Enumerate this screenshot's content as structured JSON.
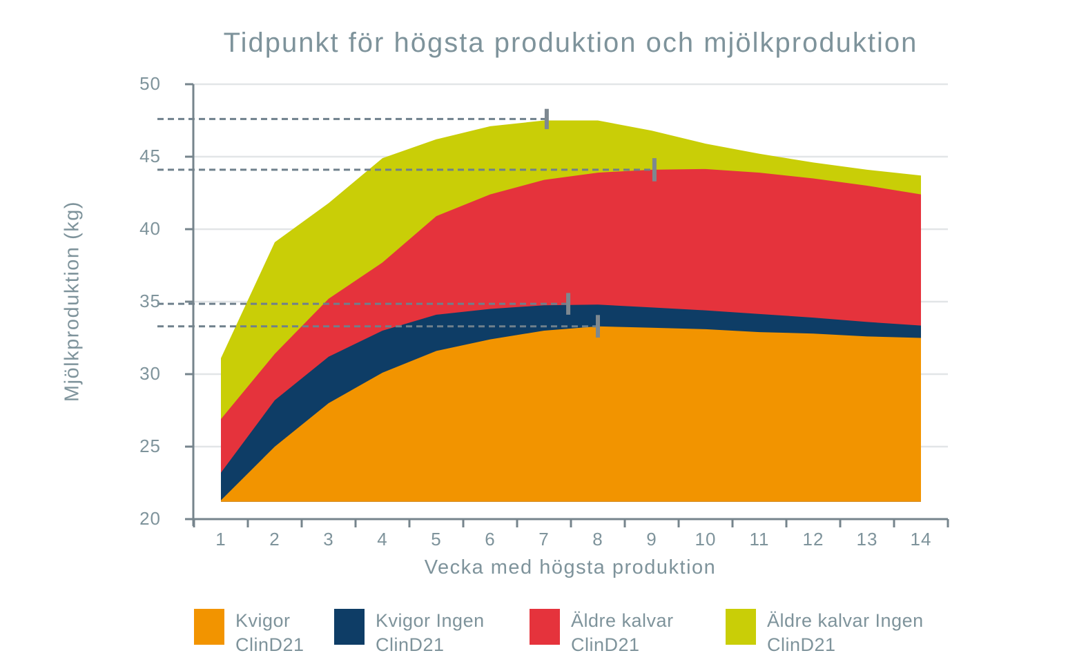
{
  "title": "Tidpunkt för högsta produktion och mjölkproduktion",
  "colors": {
    "orange": "#F29400",
    "navy": "#0E3D66",
    "red": "#E5333C",
    "yellow_green": "#C9CE07",
    "text_gray": "#7E939B",
    "axis": "#76848C",
    "gridline": "#E2E5E7",
    "dashed_line": "#6F808C",
    "marker": "#7D8890"
  },
  "chart_data": {
    "type": "area",
    "title": "Tidpunkt för högsta produktion och mjölkproduktion",
    "xlabel": "Vecka med högsta produktion",
    "ylabel": "Mjölkproduktion (kg)",
    "x": [
      1,
      2,
      3,
      4,
      5,
      6,
      7,
      8,
      9,
      10,
      11,
      12,
      13,
      14
    ],
    "ylim": [
      20,
      50
    ],
    "ytick_step": 5,
    "grid": true,
    "fill_baseline": 21.2,
    "legend_position": "bottom",
    "note": "Overlapping (non-stacked) area series drawn back-to-front: last series in legend order is drawn first. Dashed lines mark peak production level, vertical gray bars mark week of peak production with error range.",
    "series": [
      {
        "id": "kvigor-clind21",
        "name": "Kvigor ClinD21",
        "legend_lines": [
          "Kvigor",
          "ClinD21"
        ],
        "color": "#F29400",
        "values": [
          21.3,
          25.0,
          28.0,
          30.1,
          31.6,
          32.4,
          33.0,
          33.3,
          33.2,
          33.1,
          32.9,
          32.8,
          32.6,
          32.5
        ],
        "peak": {
          "week": 8.0,
          "value": 33.3,
          "err": 0.78
        }
      },
      {
        "id": "kvigor-ingen-clind21",
        "name": "Kvigor Ingen ClinD21",
        "legend_lines": [
          "Kvigor Ingen",
          "ClinD21"
        ],
        "color": "#0E3D66",
        "values": [
          23.2,
          28.2,
          31.2,
          33.0,
          34.1,
          34.5,
          34.75,
          34.8,
          34.6,
          34.4,
          34.15,
          33.9,
          33.6,
          33.35
        ],
        "peak": {
          "week": 7.45,
          "value": 34.85,
          "err": 0.75
        }
      },
      {
        "id": "aldre-kalvar-clind21",
        "name": "Äldre kalvar ClinD21",
        "legend_lines": [
          "Äldre kalvar",
          "ClinD21"
        ],
        "color": "#E5333C",
        "values": [
          26.9,
          31.4,
          35.2,
          37.7,
          40.9,
          42.4,
          43.4,
          43.9,
          44.1,
          44.15,
          43.9,
          43.5,
          43.0,
          42.4
        ],
        "peak": {
          "week": 9.05,
          "value": 44.1,
          "err": 0.8
        }
      },
      {
        "id": "aldre-kalvar-ingen-clind21",
        "name": "Äldre kalvar Ingen ClinD21",
        "legend_lines": [
          "Äldre kalvar Ingen",
          "ClinD21"
        ],
        "color": "#C9CE07",
        "values": [
          31.1,
          39.1,
          41.8,
          44.9,
          46.2,
          47.1,
          47.5,
          47.5,
          46.8,
          45.9,
          45.2,
          44.6,
          44.1,
          43.7
        ],
        "peak": {
          "week": 7.05,
          "value": 47.6,
          "err": 0.7
        }
      }
    ],
    "legend_x_positions": [
      281,
      484,
      767,
      1051
    ]
  }
}
